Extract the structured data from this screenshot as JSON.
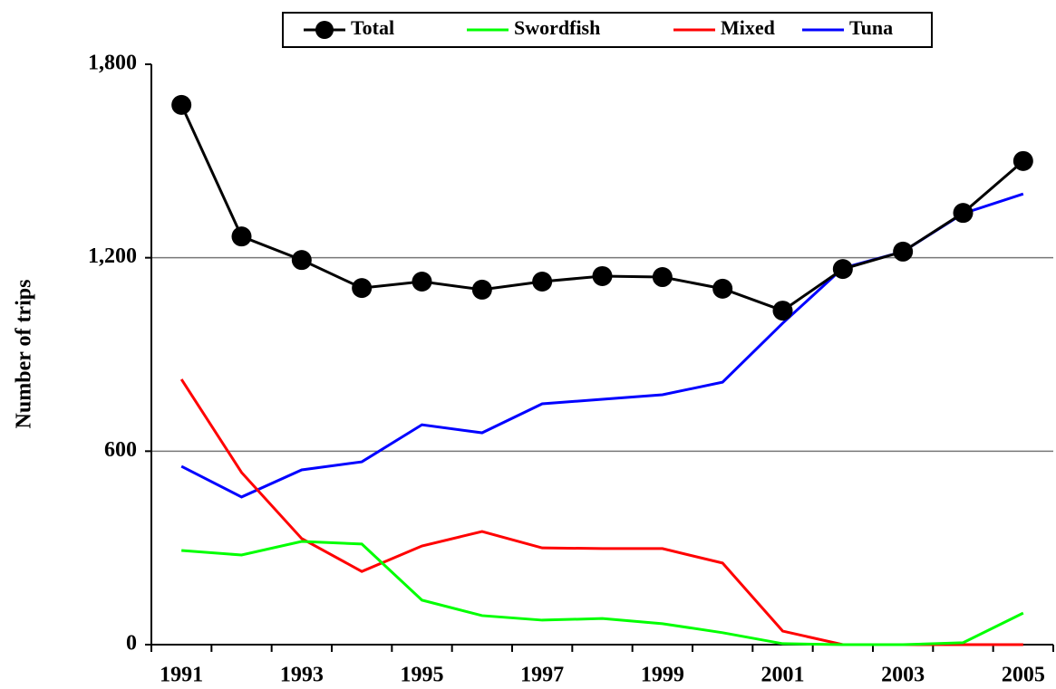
{
  "chart_data": {
    "type": "line",
    "y_label": "Number of trips",
    "categories": [
      "1991",
      null,
      "1993",
      null,
      "1995",
      null,
      "1997",
      null,
      "1999",
      null,
      "2001",
      null,
      "2003",
      null,
      "2005"
    ],
    "series": [
      {
        "name": "Total",
        "color": "#000000",
        "markers": true,
        "values": [
          1674,
          1266,
          1193,
          1106,
          1126,
          1101,
          1126,
          1143,
          1140,
          1104,
          1036,
          1165,
          1219,
          1339,
          1500
        ]
      },
      {
        "name": "Swordfish",
        "color": "#00ff00",
        "markers": false,
        "values": [
          292,
          278,
          320,
          312,
          138,
          90,
          76,
          81,
          65,
          37,
          3,
          0,
          0,
          6,
          98
        ]
      },
      {
        "name": "Mixed",
        "color": "#ff0000",
        "markers": false,
        "values": [
          823,
          534,
          329,
          227,
          306,
          351,
          300,
          298,
          298,
          253,
          42,
          0,
          0,
          0,
          0
        ]
      },
      {
        "name": "Tuna",
        "color": "#0000ff",
        "markers": false,
        "values": [
          553,
          458,
          542,
          567,
          682,
          657,
          747,
          761,
          775,
          814,
          997,
          1168,
          1219,
          1337,
          1398
        ]
      }
    ],
    "ylim": [
      0,
      1800
    ],
    "yticks": [
      0,
      600,
      {
        "value": 1200,
        "label": "1,200"
      },
      {
        "value": 1800,
        "label": "1,800"
      }
    ],
    "grid": true,
    "legend": "top"
  }
}
